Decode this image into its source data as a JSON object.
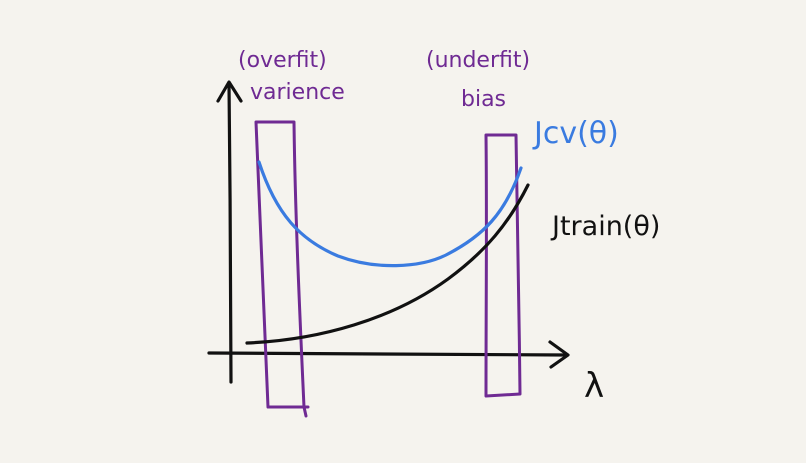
{
  "diagram": {
    "labels": {
      "left_top": "(overfit)",
      "left_bottom": "varience",
      "right_top": "(underfit)",
      "right_bottom": "bias",
      "cv_curve": "Jcv(θ)",
      "train_curve": "Jtrain(θ)",
      "x_axis": "λ"
    },
    "colors": {
      "background": "#f5f3ee",
      "axis": "#111111",
      "cv_curve": "#3a7be0",
      "train_curve": "#111111",
      "highlight_boxes": "#6f2a93"
    }
  }
}
